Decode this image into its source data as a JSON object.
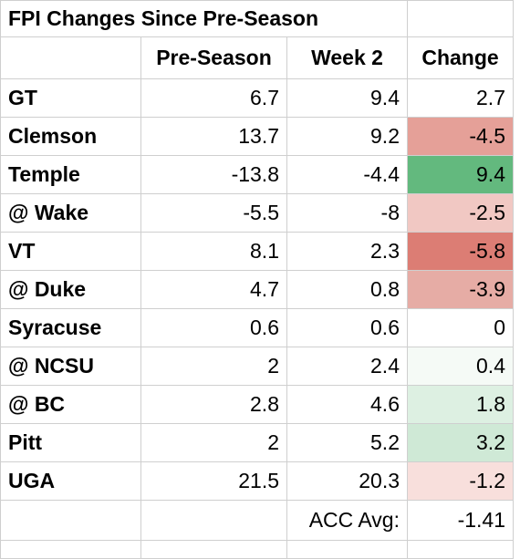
{
  "sheet": {
    "title": "FPI Changes Since Pre-Season",
    "headers": [
      "Pre-Season",
      "Week 2",
      "Change"
    ],
    "rows": [
      {
        "team": "GT",
        "pre": "6.7",
        "week2": "9.4",
        "change": "2.7",
        "color": "#ffffff"
      },
      {
        "team": "Clemson",
        "pre": "13.7",
        "week2": "9.2",
        "change": "-4.5",
        "color": "#e5a098"
      },
      {
        "team": "Temple",
        "pre": "-13.8",
        "week2": "-4.4",
        "change": "9.4",
        "color": "#63b97e"
      },
      {
        "team": "@ Wake",
        "pre": "-5.5",
        "week2": "-8",
        "change": "-2.5",
        "color": "#f1c8c3"
      },
      {
        "team": "VT",
        "pre": "8.1",
        "week2": "2.3",
        "change": "-5.8",
        "color": "#dc7d74"
      },
      {
        "team": "@ Duke",
        "pre": "4.7",
        "week2": "0.8",
        "change": "-3.9",
        "color": "#e6aca5"
      },
      {
        "team": "Syracuse",
        "pre": "0.6",
        "week2": "0.6",
        "change": "0",
        "color": "#ffffff"
      },
      {
        "team": "@ NCSU",
        "pre": "2",
        "week2": "2.4",
        "change": "0.4",
        "color": "#f5faf6"
      },
      {
        "team": "@ BC",
        "pre": "2.8",
        "week2": "4.6",
        "change": "1.8",
        "color": "#ddf0e2"
      },
      {
        "team": "Pitt",
        "pre": "2",
        "week2": "5.2",
        "change": "3.2",
        "color": "#cfe9d6"
      },
      {
        "team": "UGA",
        "pre": "21.5",
        "week2": "20.3",
        "change": "-1.2",
        "color": "#f8dfdc"
      }
    ],
    "avg_label": "ACC Avg:",
    "avg_value": "-1.41"
  }
}
